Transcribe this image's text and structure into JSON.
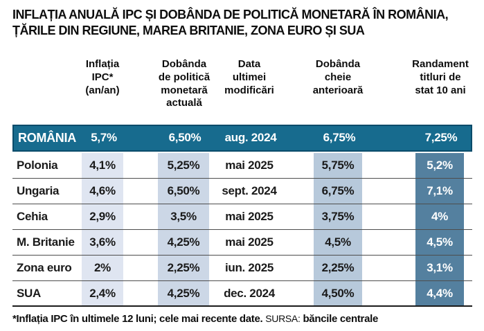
{
  "title": "INFLAȚIA ANUALĂ IPC ȘI DOBÂNDA DE POLITICĂ MONETARĂ ÎN ROMÂNIA,\nȚĂRILE DIN REGIUNE, MAREA BRITANIE, ZONA EURO ȘI SUA",
  "table": {
    "header": [
      "Inflația\nIPC*\n(an/an)",
      "Dobânda\nde politică\nmonetară\nactuală",
      "Data\nultimei\nmodificări",
      "Dobânda\ncheie\nanterioară",
      "Randament\ntitluri de\nstat 10 ani"
    ],
    "highlight_row": {
      "country": "ROMÂNIA",
      "values": [
        "5,7%",
        "6,50%",
        "aug. 2024",
        "6,75%",
        "7,25%"
      ]
    },
    "rows": [
      {
        "country": "Polonia",
        "values": [
          "4,1%",
          "5,25%",
          "mai 2025",
          "5,75%",
          "5,2%"
        ]
      },
      {
        "country": "Ungaria",
        "values": [
          "4,6%",
          "6,50%",
          "sept. 2024",
          "6,75%",
          "7,1%"
        ]
      },
      {
        "country": "Cehia",
        "values": [
          "2,9%",
          "3,5%",
          "mai 2025",
          "3,75%",
          "4%"
        ]
      },
      {
        "country": "M. Britanie",
        "values": [
          "3,6%",
          "4,25%",
          "mai 2025",
          "4,5%",
          "4,5%"
        ]
      },
      {
        "country": "Zona euro",
        "values": [
          "2%",
          "2,25%",
          "iun. 2025",
          "2,25%",
          "3,1%"
        ]
      },
      {
        "country": "SUA",
        "values": [
          "2,4%",
          "4,25%",
          "dec. 2024",
          "4,50%",
          "4,4%"
        ]
      }
    ]
  },
  "footer": {
    "note": "*Inflația IPC în ultimele 12 luni; cele mai recente date.",
    "source_label": "SURSA:",
    "source_value": "băncile centrale"
  },
  "colors": {
    "highlight_row_bg": "#176b8e",
    "highlight_row_border": "#0a4b6a",
    "band_ipc": "#dfe5f1",
    "band_current": "#ccd7e6",
    "band_previous": "#b7c9db",
    "band_yield": "#54809f",
    "text": "#1a1a1a",
    "highlight_text": "#ffffff"
  }
}
